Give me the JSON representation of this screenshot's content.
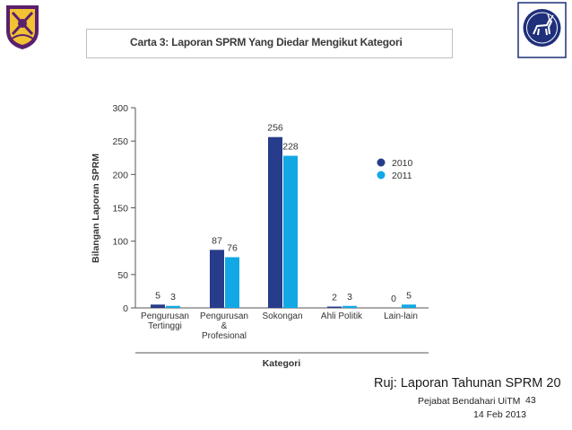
{
  "slide": {
    "reference": "Ruj: Laporan Tahunan SPRM 20",
    "footer_org": "Pejabat Bendahari UiTM",
    "page_number": "43",
    "date": "14 Feb 2013"
  },
  "colors": {
    "series_2010": "#273c8a",
    "series_2011": "#12a8e6"
  },
  "icons": {
    "left_logo": "uitm-crest-icon",
    "right_logo": "deer-emblem-icon"
  },
  "chart_data": {
    "type": "bar",
    "title": "Carta 3: Laporan SPRM Yang Diedar Mengikut Kategori",
    "xlabel": "Kategori",
    "ylabel": "Bilangan Laporan SPRM",
    "ylim": [
      0,
      300
    ],
    "yticks": [
      0,
      50,
      100,
      150,
      200,
      250,
      300
    ],
    "categories": [
      [
        "Pengurusan",
        "Tertinggi"
      ],
      [
        "Pengurusan",
        "&",
        "Profesional"
      ],
      [
        "Sokongan"
      ],
      [
        "Ahli Politik"
      ],
      [
        "Lain-lain"
      ]
    ],
    "series": [
      {
        "name": "2010",
        "values": [
          5,
          87,
          256,
          2,
          0
        ],
        "color": "#273c8a"
      },
      {
        "name": "2011",
        "values": [
          3,
          76,
          228,
          3,
          5
        ],
        "color": "#12a8e6"
      }
    ],
    "legend": "right",
    "grid": false
  }
}
